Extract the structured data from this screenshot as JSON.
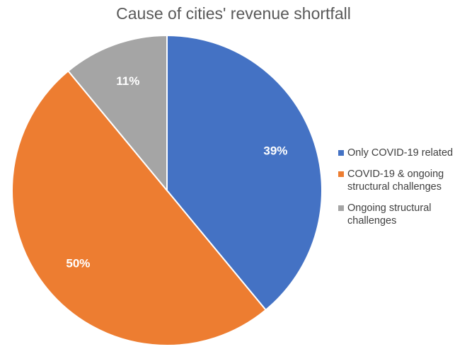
{
  "chart_data": {
    "type": "pie",
    "title": "Cause of cities' revenue shortfall",
    "categories": [
      "Only COVID-19 related",
      "COVID-19 & ongoing structural challenges",
      "Ongoing structural challenges"
    ],
    "values": [
      39,
      50,
      11
    ],
    "data_labels": [
      "39%",
      "50%",
      "11%"
    ],
    "colors": [
      "#4472C4",
      "#ED7D31",
      "#A5A5A5"
    ],
    "start_angle": "12 o'clock",
    "direction": "clockwise",
    "legend_position": "right"
  },
  "legend": {
    "items": [
      {
        "label": "Only COVID-19 related",
        "color": "#4472C4"
      },
      {
        "label": "COVID-19 & ongoing structural challenges",
        "color": "#ED7D31"
      },
      {
        "label": "Ongoing structural challenges",
        "color": "#A5A5A5"
      }
    ]
  }
}
